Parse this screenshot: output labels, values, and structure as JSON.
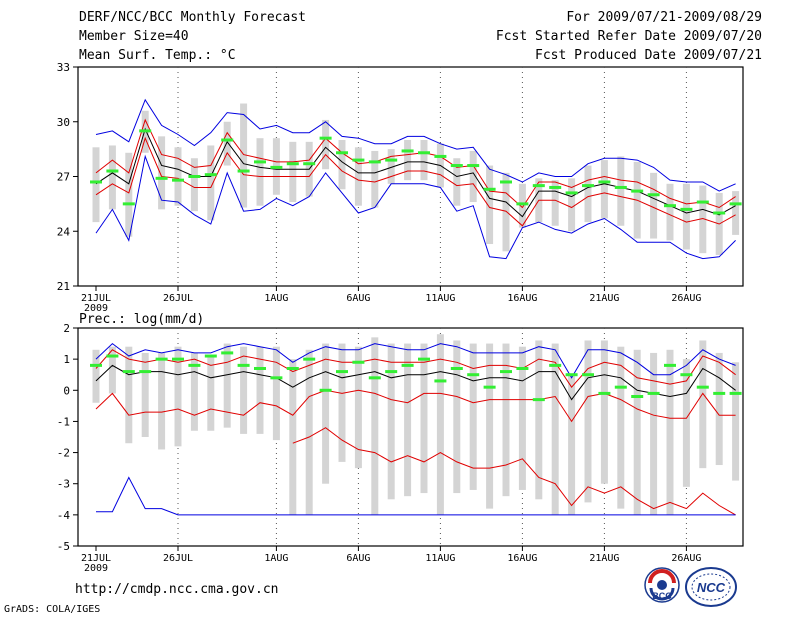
{
  "header": {
    "title": "DERF/NCC/BCC Monthly Forecast",
    "member_size": "Member Size=40",
    "variable": "Mean Surf. Temp.: °C",
    "period": "For 2009/07/21-2009/08/29",
    "started": "Fcst Started Refer Date 2009/07/20",
    "produced": "Fcst Produced Date 2009/07/21"
  },
  "footer": {
    "url": "http://cmdp.ncc.cma.gov.cn",
    "credit": "GrADS: COLA/IGES",
    "logo_left": "BCC",
    "logo_right": "NCC"
  },
  "colors": {
    "mean": "#000000",
    "spread": "#e00000",
    "envelope": "#0000e0",
    "obs": "#33ee33",
    "box": "#d4d4d4"
  },
  "chart_data": [
    {
      "type": "line",
      "title": "Mean Surf. Temp.: °C",
      "ylim": [
        21,
        33
      ],
      "yticks": [
        21,
        24,
        27,
        30,
        33
      ],
      "xtick_labels": [
        "21JUL",
        "26JUL",
        "1AUG",
        "6AUG",
        "11AUG",
        "16AUG",
        "21AUG",
        "26AUG"
      ],
      "xtick_days": [
        1,
        6,
        12,
        17,
        22,
        27,
        32,
        37
      ],
      "year_label": "2009",
      "series": [
        {
          "name": "ensemble-mean",
          "values": [
            26.6,
            27.2,
            26.6,
            29.6,
            27.6,
            27.4,
            27.0,
            27.0,
            28.9,
            27.7,
            27.5,
            27.4,
            27.4,
            27.4,
            28.6,
            27.8,
            27.2,
            27.2,
            27.5,
            27.8,
            27.8,
            27.6,
            27.0,
            27.2,
            25.8,
            25.6,
            24.8,
            26.2,
            26.2,
            25.9,
            26.4,
            26.6,
            26.4,
            26.2,
            25.8,
            25.4,
            25.0,
            25.2,
            24.9,
            25.4
          ]
        },
        {
          "name": "upper-spread",
          "values": [
            27.2,
            27.9,
            27.2,
            30.1,
            28.2,
            28.0,
            27.5,
            27.6,
            29.4,
            28.2,
            28.0,
            27.8,
            27.8,
            27.9,
            29.1,
            28.3,
            27.7,
            27.8,
            28.1,
            28.2,
            28.3,
            28.1,
            27.5,
            27.6,
            26.2,
            26.1,
            25.3,
            26.7,
            26.7,
            26.4,
            26.8,
            27.0,
            26.8,
            26.7,
            26.3,
            25.8,
            25.5,
            25.6,
            25.3,
            25.9
          ]
        },
        {
          "name": "lower-spread",
          "values": [
            26.0,
            26.6,
            26.1,
            29.1,
            27.0,
            26.9,
            26.4,
            26.4,
            28.3,
            27.1,
            27.0,
            27.0,
            27.0,
            27.0,
            28.2,
            27.3,
            26.8,
            26.7,
            27.0,
            27.3,
            27.3,
            27.1,
            26.5,
            26.6,
            25.3,
            25.1,
            24.3,
            25.7,
            25.7,
            25.3,
            25.9,
            26.1,
            25.9,
            25.7,
            25.3,
            24.9,
            24.5,
            24.7,
            24.4,
            24.9
          ]
        },
        {
          "name": "ensemble-max",
          "values": [
            29.3,
            29.5,
            28.9,
            31.2,
            29.8,
            29.3,
            28.7,
            29.4,
            30.5,
            30.4,
            29.6,
            29.8,
            29.4,
            29.4,
            30.0,
            29.2,
            29.1,
            28.8,
            28.8,
            29.2,
            29.2,
            28.8,
            28.5,
            28.6,
            27.4,
            27.1,
            26.7,
            27.2,
            27.0,
            27.0,
            27.7,
            28.0,
            28.0,
            27.9,
            27.5,
            26.8,
            26.7,
            26.7,
            26.2,
            26.6
          ]
        },
        {
          "name": "ensemble-min",
          "values": [
            23.9,
            25.2,
            23.5,
            28.1,
            25.7,
            25.6,
            24.9,
            24.4,
            27.2,
            25.1,
            25.2,
            25.8,
            25.4,
            25.9,
            27.2,
            26.1,
            25.0,
            25.3,
            26.6,
            26.6,
            26.6,
            26.4,
            25.1,
            25.4,
            22.6,
            22.5,
            24.2,
            24.5,
            24.1,
            23.9,
            24.4,
            24.7,
            24.1,
            23.4,
            23.4,
            23.4,
            22.8,
            22.5,
            22.6,
            23.5
          ]
        },
        {
          "name": "observed",
          "values": [
            26.7,
            27.3,
            25.5,
            29.5,
            26.9,
            26.8,
            27.0,
            27.1,
            29.0,
            27.3,
            27.8,
            27.5,
            27.7,
            27.7,
            29.1,
            28.3,
            27.9,
            27.8,
            27.9,
            28.4,
            28.3,
            28.1,
            27.6,
            27.6,
            26.3,
            26.7,
            25.5,
            26.5,
            26.4,
            26.1,
            26.5,
            26.7,
            26.4,
            26.2,
            26.0,
            25.4,
            25.2,
            25.6,
            25.0,
            25.5
          ]
        }
      ],
      "boxes": {
        "low": [
          24.5,
          25.2,
          23.7,
          28.3,
          25.2,
          25.4,
          25.1,
          24.6,
          27.6,
          25.3,
          25.4,
          26.0,
          25.6,
          25.9,
          27.4,
          26.3,
          25.4,
          25.3,
          26.6,
          26.8,
          26.8,
          26.4,
          25.4,
          25.6,
          23.3,
          22.9,
          24.2,
          24.5,
          24.3,
          24.0,
          24.5,
          24.7,
          24.3,
          23.6,
          23.6,
          23.5,
          23.0,
          22.8,
          22.7,
          23.8
        ],
        "high": [
          28.6,
          28.7,
          28.3,
          30.6,
          29.2,
          28.6,
          28.0,
          28.7,
          30.0,
          31.0,
          29.1,
          29.1,
          28.9,
          28.9,
          30.1,
          29.0,
          28.6,
          28.4,
          28.5,
          29.0,
          29.0,
          28.8,
          28.0,
          28.4,
          27.6,
          27.2,
          26.6,
          26.9,
          26.8,
          26.9,
          27.6,
          27.9,
          28.1,
          27.8,
          27.2,
          26.6,
          26.6,
          26.5,
          26.1,
          26.2
        ]
      }
    },
    {
      "type": "line",
      "title": "Prec.: log(mm/d)",
      "ylim": [
        -5,
        2
      ],
      "yticks": [
        -5,
        -4,
        -3,
        -2,
        -1,
        0,
        1,
        2
      ],
      "xtick_labels": [
        "21JUL",
        "26JUL",
        "1AUG",
        "6AUG",
        "11AUG",
        "16AUG",
        "21AUG",
        "26AUG"
      ],
      "xtick_days": [
        1,
        6,
        12,
        17,
        22,
        27,
        32,
        37
      ],
      "year_label": "2009",
      "series": [
        {
          "name": "ensemble-mean",
          "values": [
            0.3,
            0.8,
            0.5,
            0.6,
            0.6,
            0.5,
            0.6,
            0.4,
            0.5,
            0.6,
            0.5,
            0.4,
            0.1,
            0.4,
            0.6,
            0.4,
            0.5,
            0.6,
            0.4,
            0.5,
            0.5,
            0.6,
            0.5,
            0.3,
            0.4,
            0.4,
            0.3,
            0.6,
            0.6,
            -0.3,
            0.4,
            0.5,
            0.4,
            0.0,
            -0.1,
            -0.2,
            -0.1,
            0.7,
            0.4,
            0.0
          ]
        },
        {
          "name": "upper-spread",
          "values": [
            0.7,
            1.3,
            1.0,
            0.9,
            1.0,
            0.9,
            1.0,
            0.8,
            0.9,
            1.1,
            1.0,
            0.9,
            0.6,
            0.8,
            1.0,
            0.9,
            0.9,
            1.0,
            0.9,
            0.9,
            0.9,
            1.0,
            0.9,
            0.7,
            0.8,
            0.8,
            0.7,
            1.0,
            0.9,
            0.1,
            0.7,
            0.9,
            0.8,
            0.4,
            0.3,
            0.2,
            0.3,
            1.1,
            0.9,
            0.5
          ]
        },
        {
          "name": "lower-spread",
          "values": [
            -0.6,
            -0.1,
            -0.8,
            -0.7,
            -0.7,
            -0.6,
            -0.8,
            -0.6,
            -0.7,
            -0.8,
            -0.4,
            -0.5,
            -0.8,
            -0.2,
            0.0,
            -0.1,
            0.0,
            -0.1,
            -0.3,
            -0.4,
            -0.1,
            -0.1,
            -0.2,
            -0.4,
            -0.3,
            -0.3,
            -0.3,
            -0.3,
            -0.2,
            -1.0,
            -0.2,
            -0.1,
            -0.3,
            -0.6,
            -0.8,
            -0.9,
            -0.9,
            -0.1,
            -0.8,
            -0.8
          ]
        },
        {
          "name": "lower-bound",
          "values": [
            null,
            null,
            null,
            null,
            null,
            null,
            null,
            null,
            null,
            null,
            null,
            null,
            -1.7,
            -1.5,
            -1.2,
            -1.6,
            -1.9,
            -2.0,
            -2.3,
            -2.1,
            -2.3,
            -2.0,
            -2.3,
            -2.5,
            -2.5,
            -2.4,
            -2.2,
            -2.8,
            -3.0,
            -3.7,
            -3.1,
            -3.3,
            -3.1,
            -3.5,
            -3.8,
            -3.6,
            -3.8,
            -3.3,
            -3.7,
            -4.0
          ]
        },
        {
          "name": "ensemble-max",
          "values": [
            1.0,
            1.5,
            1.1,
            1.3,
            1.2,
            1.3,
            1.2,
            1.2,
            1.4,
            1.5,
            1.4,
            1.3,
            0.9,
            1.2,
            1.4,
            1.3,
            1.3,
            1.5,
            1.4,
            1.3,
            1.3,
            1.5,
            1.4,
            1.2,
            1.2,
            1.2,
            1.2,
            1.4,
            1.3,
            0.4,
            1.3,
            1.3,
            1.2,
            0.9,
            0.5,
            0.5,
            0.8,
            1.3,
            1.0,
            0.8
          ]
        },
        {
          "name": "ensemble-min",
          "values": [
            -3.9,
            -3.9,
            -2.8,
            -3.8,
            -3.8,
            -4.0,
            -4.0,
            -4.0,
            -4.0,
            -4.0,
            -4.0,
            -4.0,
            -4.0,
            -4.0,
            -4.0,
            -4.0,
            -4.0,
            -4.0,
            -4.0,
            -4.0,
            -4.0,
            -4.0,
            -4.0,
            -4.0,
            -4.0,
            -4.0,
            -4.0,
            -4.0,
            -4.0,
            -4.0,
            -4.0,
            -4.0,
            -4.0,
            -4.0,
            -4.0,
            -4.0,
            -4.0,
            -4.0,
            -4.0,
            -4.0
          ]
        },
        {
          "name": "observed",
          "values": [
            0.8,
            1.1,
            0.6,
            0.6,
            1.0,
            1.0,
            0.8,
            1.1,
            1.2,
            0.8,
            0.7,
            0.4,
            0.7,
            1.0,
            0.0,
            0.6,
            0.9,
            0.4,
            0.6,
            0.8,
            1.0,
            0.3,
            0.7,
            0.5,
            0.1,
            0.6,
            0.7,
            -0.3,
            0.8,
            0.5,
            0.5,
            -0.1,
            0.1,
            -0.2,
            -0.1,
            0.8,
            0.5,
            0.1,
            -0.1,
            -0.1
          ]
        }
      ],
      "boxes": {
        "low": [
          -0.4,
          -0.1,
          -1.7,
          -1.5,
          -1.9,
          -1.8,
          -1.3,
          -1.3,
          -1.2,
          -1.4,
          -1.4,
          -1.6,
          -4.0,
          -4.0,
          -3.0,
          -2.3,
          -2.5,
          -4.0,
          -3.5,
          -3.4,
          -3.3,
          -4.0,
          -3.3,
          -3.2,
          -3.8,
          -3.4,
          -3.2,
          -3.5,
          -4.0,
          -4.0,
          -3.6,
          -3.0,
          -3.8,
          -4.0,
          -4.0,
          -4.0,
          -3.1,
          -2.5,
          -2.4,
          -2.9
        ],
        "high": [
          1.3,
          1.4,
          1.4,
          1.2,
          1.2,
          1.4,
          1.2,
          1.1,
          1.5,
          1.4,
          1.4,
          1.4,
          1.0,
          1.3,
          1.5,
          1.5,
          1.4,
          1.7,
          1.5,
          1.5,
          1.5,
          1.8,
          1.6,
          1.5,
          1.5,
          1.5,
          1.4,
          1.6,
          1.5,
          0.5,
          1.6,
          1.6,
          1.4,
          1.3,
          1.2,
          1.3,
          1.0,
          1.6,
          1.2,
          0.9
        ]
      }
    }
  ]
}
